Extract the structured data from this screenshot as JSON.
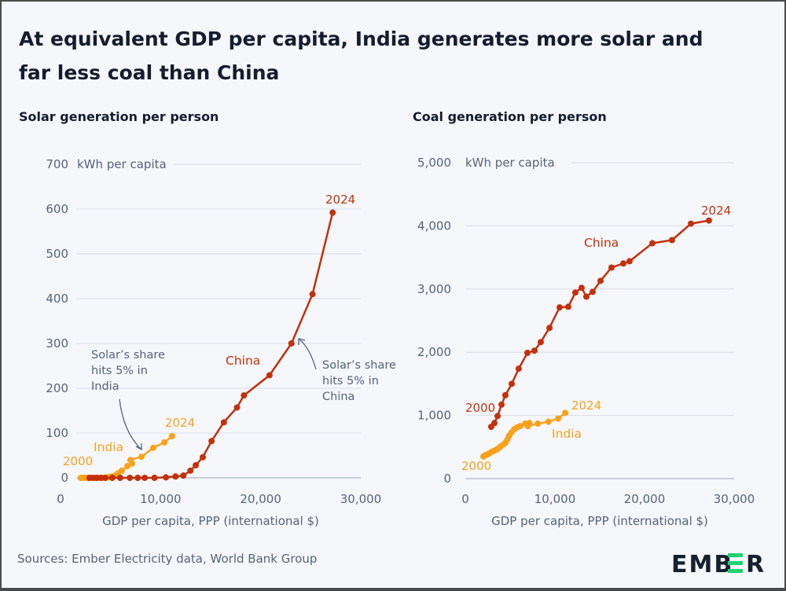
{
  "title_line1": "At equivalent GDP per capita, India generates more solar and",
  "title_line2": "far less coal than China",
  "source": "Sources: Ember Electricity data, World Bank Group",
  "logo": "EMBER",
  "colors": {
    "china": "#c3310c",
    "india": "#f8a21c",
    "logo_dark": "#17202e",
    "logo_accent": "#1dd36f",
    "background": "#f5f7fb"
  },
  "chart_data": [
    {
      "type": "line",
      "title": "Solar generation per person",
      "xlabel": "GDP per capita, PPP (international $)",
      "ylabel": "kWh per capita",
      "xlim": [
        0,
        30000
      ],
      "ylim": [
        0,
        700
      ],
      "xticks": [
        {
          "v": 0,
          "label": "0"
        },
        {
          "v": 10000,
          "label": "10,000"
        },
        {
          "v": 20000,
          "label": "20,000"
        },
        {
          "v": 30000,
          "label": "30,000"
        }
      ],
      "yticks": [
        {
          "v": 0,
          "label": "0"
        },
        {
          "v": 100,
          "label": "100"
        },
        {
          "v": 200,
          "label": "200"
        },
        {
          "v": 300,
          "label": "300"
        },
        {
          "v": 400,
          "label": "400"
        },
        {
          "v": 500,
          "label": "500"
        },
        {
          "v": 600,
          "label": "600"
        },
        {
          "v": 700,
          "label": "700"
        }
      ],
      "grid": true,
      "series": [
        {
          "name": "China",
          "color_key": "china",
          "start_label": "",
          "end_label": "2024",
          "x": [
            2890,
            3250,
            3600,
            4040,
            4470,
            5180,
            5960,
            6930,
            7720,
            8420,
            9390,
            10530,
            11490,
            12280,
            12980,
            13510,
            14210,
            15090,
            16320,
            17630,
            18330,
            20880,
            23070,
            25180,
            27190
          ],
          "y": [
            0,
            0,
            0,
            0,
            0,
            0,
            0,
            0,
            0,
            0,
            0,
            1,
            3,
            5,
            16,
            28,
            46,
            82,
            124,
            157,
            184,
            229,
            300,
            410,
            592
          ]
        },
        {
          "name": "India",
          "color_key": "india",
          "start_label": "2000",
          "end_label": "2024",
          "x": [
            2020,
            2120,
            2230,
            2420,
            2650,
            2900,
            3200,
            3500,
            3700,
            3950,
            4250,
            4500,
            4700,
            4900,
            5150,
            5450,
            5750,
            6130,
            6680,
            7150,
            6990,
            8090,
            9270,
            10370,
            11150
          ],
          "y": [
            0,
            0,
            0,
            0,
            0,
            0,
            0,
            0,
            0,
            0,
            0,
            0.5,
            1,
            2,
            3,
            5,
            10,
            16,
            26,
            32,
            40,
            47,
            67,
            79,
            93
          ]
        }
      ],
      "annotations": [
        {
          "lines": [
            "Solar’s share",
            "hits 5% in",
            "India"
          ]
        },
        {
          "lines": [
            "Solar’s share",
            "hits 5% in",
            "China"
          ]
        }
      ]
    },
    {
      "type": "line",
      "title": "Coal generation per person",
      "xlabel": "GDP per capita, PPP (international $)",
      "ylabel": "kWh per capita",
      "xlim": [
        0,
        30000
      ],
      "ylim": [
        0,
        5000
      ],
      "xticks": [
        {
          "v": 0,
          "label": "0"
        },
        {
          "v": 10000,
          "label": "10,000"
        },
        {
          "v": 20000,
          "label": "20,000"
        },
        {
          "v": 30000,
          "label": "30,000"
        }
      ],
      "yticks": [
        {
          "v": 0,
          "label": "0"
        },
        {
          "v": 1000,
          "label": "1,000"
        },
        {
          "v": 2000,
          "label": "2,000"
        },
        {
          "v": 3000,
          "label": "3,000"
        },
        {
          "v": 4000,
          "label": "4,000"
        },
        {
          "v": 5000,
          "label": "5,000"
        }
      ],
      "grid": true,
      "series": [
        {
          "name": "China",
          "color_key": "china",
          "start_label": "2000",
          "end_label": "2024",
          "x": [
            2890,
            3250,
            3600,
            4040,
            4470,
            5180,
            5960,
            6930,
            7720,
            8420,
            9390,
            10530,
            11490,
            12280,
            12980,
            13510,
            14210,
            15090,
            16320,
            17630,
            18330,
            20880,
            23070,
            25180,
            27190
          ],
          "y": [
            820,
            880,
            990,
            1170,
            1320,
            1500,
            1740,
            1990,
            2025,
            2160,
            2385,
            2710,
            2720,
            2945,
            3020,
            2880,
            2955,
            3130,
            3340,
            3405,
            3440,
            3725,
            3775,
            4035,
            4085
          ]
        },
        {
          "name": "India",
          "color_key": "india",
          "start_label": "2000",
          "end_label": "2024",
          "x": [
            2020,
            2120,
            2230,
            2420,
            2650,
            2900,
            3200,
            3500,
            3700,
            3950,
            4250,
            4500,
            4700,
            4900,
            5150,
            5450,
            5750,
            6130,
            6680,
            7150,
            6990,
            8090,
            9270,
            10370,
            11150
          ],
          "y": [
            350,
            360,
            370,
            380,
            395,
            420,
            440,
            460,
            480,
            510,
            540,
            570,
            620,
            680,
            730,
            780,
            810,
            830,
            870,
            880,
            830,
            870,
            900,
            950,
            1040
          ]
        }
      ]
    }
  ]
}
